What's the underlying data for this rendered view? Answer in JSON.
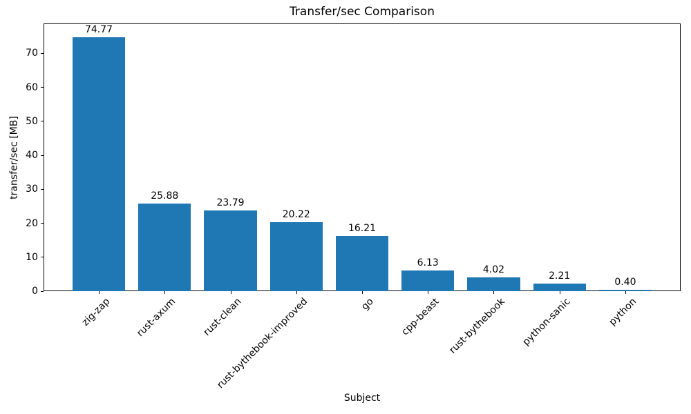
{
  "chart_data": {
    "type": "bar",
    "title": "Transfer/sec Comparison",
    "xlabel": "Subject",
    "ylabel": "transfer/sec [MB]",
    "categories": [
      "zig-zap",
      "rust-axum",
      "rust-clean",
      "rust-bythebook-improved",
      "go",
      "cpp-beast",
      "rust-bythebook",
      "python-sanic",
      "python"
    ],
    "values": [
      74.77,
      25.88,
      23.79,
      20.22,
      16.21,
      6.13,
      4.02,
      2.21,
      0.4
    ],
    "value_labels": [
      "74.77",
      "25.88",
      "23.79",
      "20.22",
      "16.21",
      "6.13",
      "4.02",
      "2.21",
      "0.40"
    ],
    "yticks": [
      0,
      10,
      20,
      30,
      40,
      50,
      60,
      70
    ],
    "ylim": [
      0,
      78.8
    ],
    "grid": false,
    "legend": "none",
    "bar_color": "#1f77b4",
    "axis_color": "#000000",
    "background_color": "#ffffff"
  }
}
